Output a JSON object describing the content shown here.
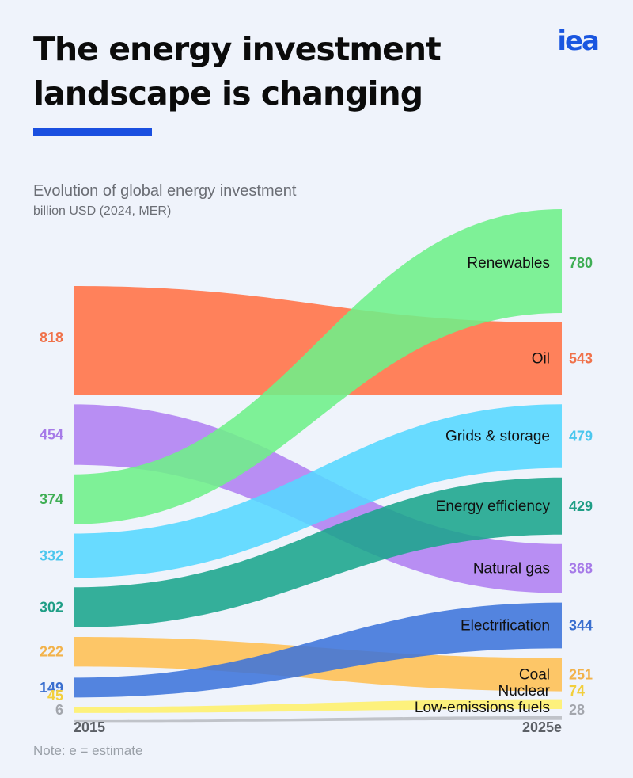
{
  "header": {
    "title": "The energy investment landscape is changing",
    "logo": "iea",
    "accent_color": "#1a4fe0"
  },
  "chart_data": {
    "type": "sankey",
    "title": "Evolution of global energy investment",
    "unit": "billion USD (2024, MER)",
    "x_labels": [
      "2015",
      "2025e"
    ],
    "note": "Note: e = estimate",
    "series": [
      {
        "name": "Renewables",
        "v2015": 374,
        "v2025": 780,
        "color": "#6ef089",
        "text_color": "#3fae54"
      },
      {
        "name": "Oil",
        "v2015": 818,
        "v2025": 543,
        "color": "#ff7a52",
        "text_color": "#f0714a"
      },
      {
        "name": "Grids & storage",
        "v2015": 332,
        "v2025": 479,
        "color": "#55d7ff",
        "text_color": "#4cc7ee"
      },
      {
        "name": "Energy efficiency",
        "v2015": 302,
        "v2025": 429,
        "color": "#1aa58c",
        "text_color": "#1f9e86"
      },
      {
        "name": "Natural gas",
        "v2015": 454,
        "v2025": 368,
        "color": "#b488f2",
        "text_color": "#a67ae8"
      },
      {
        "name": "Electrification",
        "v2015": 149,
        "v2025": 344,
        "color": "#3d74db",
        "text_color": "#3a6fcf"
      },
      {
        "name": "Coal",
        "v2015": 222,
        "v2025": 251,
        "color": "#ffbf52",
        "text_color": "#f2b24a"
      },
      {
        "name": "Nuclear",
        "v2015": 45,
        "v2025": 74,
        "color": "#fff06a",
        "text_color": "#f2cf3c"
      },
      {
        "name": "Low-emissions fuels",
        "v2015": 6,
        "v2025": 28,
        "color": "#b9bcc2",
        "text_color": "#a3a6ad"
      }
    ]
  }
}
